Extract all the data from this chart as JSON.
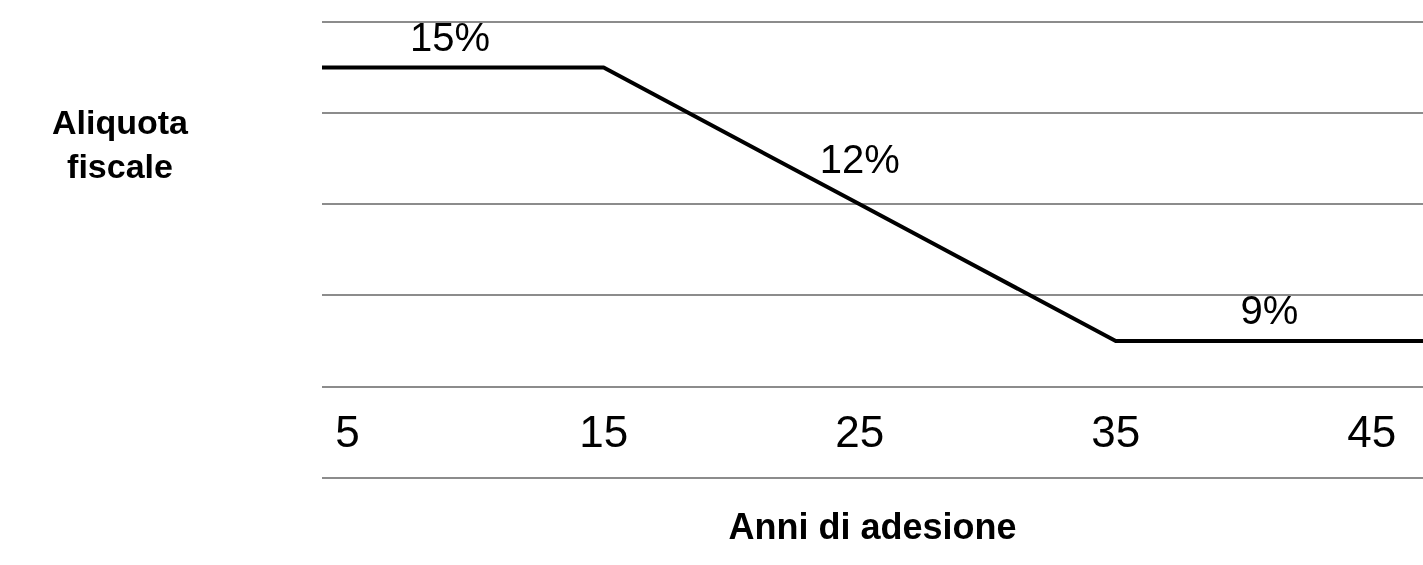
{
  "chart_data": {
    "type": "line",
    "xlabel": "Anni di adesione",
    "ylabel": "Aliquota fiscale",
    "x": [
      4,
      9,
      15,
      25,
      35,
      41,
      47
    ],
    "series": [
      {
        "color": "#000000",
        "values": [
          15,
          15,
          15,
          12,
          9,
          9,
          9
        ],
        "value_labels": [
          null,
          "15%",
          null,
          "12%",
          null,
          "9%",
          null
        ]
      }
    ],
    "xlim": [
      4,
      47
    ],
    "xticks": [
      5,
      15,
      25,
      35,
      45
    ],
    "ylim": [
      6,
      16
    ],
    "yticks": [
      {
        "value": 6,
        "label": null
      },
      {
        "value": 8,
        "label": null
      },
      {
        "value": 10,
        "label": null
      },
      {
        "value": 12,
        "label": null
      },
      {
        "value": 14,
        "label": null
      },
      {
        "value": 16,
        "label": null
      }
    ],
    "tick_labels": "x",
    "grid": "y",
    "legend": false,
    "marker": "none",
    "line_style": "solid"
  }
}
